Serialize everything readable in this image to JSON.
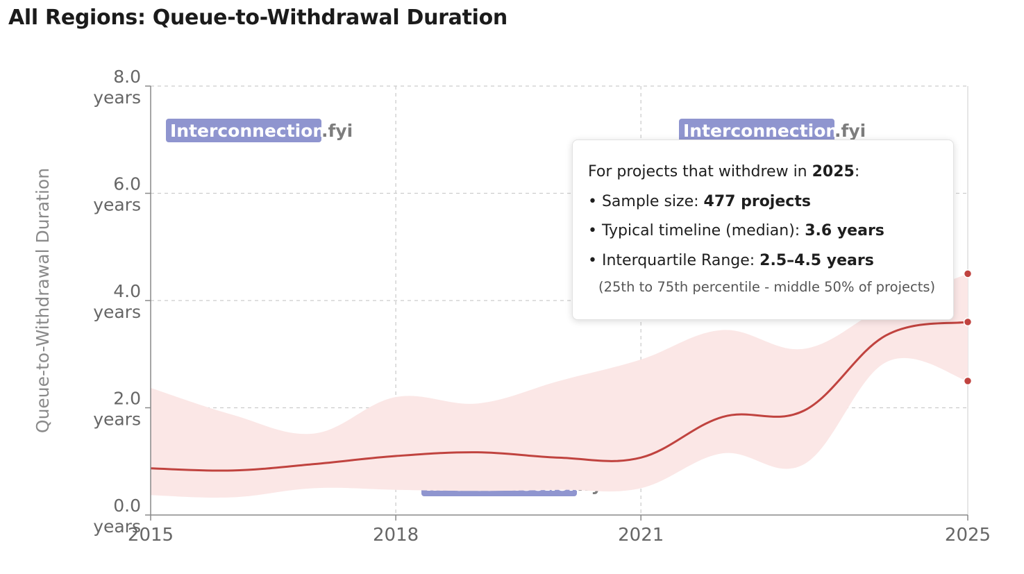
{
  "title": "All Regions: Queue-to-Withdrawal Duration",
  "watermark": {
    "main": "Interconnection",
    "suffix": ".fyi"
  },
  "tooltip": {
    "header_prefix": "For projects that withdrew in ",
    "header_year": "2025",
    "header_suffix": ":",
    "sample_label": "• Sample size: ",
    "sample_value": "477 projects",
    "median_label": "• Typical timeline (median): ",
    "median_value": "3.6 years",
    "iqr_label": "• Interquartile Range: ",
    "iqr_value": "2.5–4.5 years",
    "note": "(25th to 75th percentile - middle 50% of projects)"
  },
  "colors": {
    "line": "#c0433f",
    "band": "#fbe7e6",
    "grid": "#cccccc",
    "axis": "#888888"
  },
  "chart_data": {
    "type": "line",
    "title": "All Regions: Queue-to-Withdrawal Duration",
    "ylabel": "Queue-to-Withdrawal Duration",
    "xlabel": "",
    "xlim": [
      2015,
      2025
    ],
    "ylim": [
      0,
      8
    ],
    "x_ticks": [
      "2015",
      "2018",
      "2021",
      "2025"
    ],
    "y_ticks": [
      {
        "value": "0.0",
        "unit": "years"
      },
      {
        "value": "2.0",
        "unit": "years"
      },
      {
        "value": "4.0",
        "unit": "years"
      },
      {
        "value": "6.0",
        "unit": "years"
      },
      {
        "value": "8.0",
        "unit": "years"
      }
    ],
    "grid": true,
    "x": [
      2015,
      2016,
      2017,
      2018,
      2019,
      2020,
      2021,
      2022,
      2023,
      2024,
      2025
    ],
    "series": [
      {
        "values": [
          0.87,
          0.83,
          0.95,
          1.1,
          1.17,
          1.07,
          1.07,
          1.83,
          1.95,
          3.35,
          3.6
        ]
      }
    ],
    "band": {
      "lower": [
        0.37,
        0.33,
        0.5,
        0.47,
        0.45,
        0.47,
        0.5,
        1.15,
        0.95,
        2.85,
        2.5
      ],
      "upper": [
        2.37,
        1.87,
        1.52,
        2.2,
        2.08,
        2.5,
        2.9,
        3.45,
        3.1,
        3.9,
        4.5
      ]
    },
    "tooltip_year": 2025
  }
}
